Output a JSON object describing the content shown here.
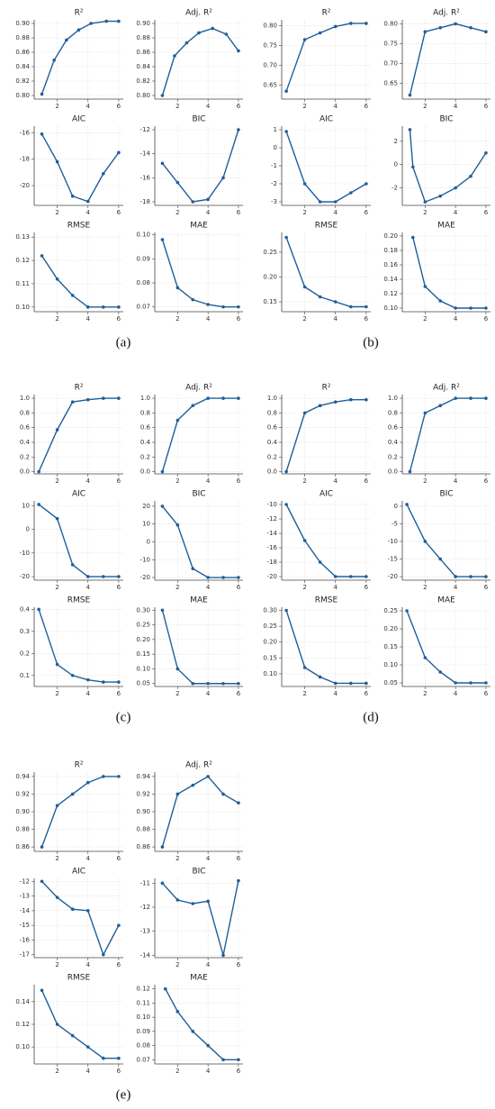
{
  "panel_labels": [
    "(a)",
    "(b)",
    "(c)",
    "(d)",
    "(e)"
  ],
  "chart_data": [
    {
      "type": "line",
      "title": "R²",
      "x": [
        1,
        1.8,
        2.6,
        3.4,
        4.2,
        5.2,
        6
      ],
      "values": [
        0.802,
        0.849,
        0.877,
        0.891,
        0.9,
        0.903,
        0.903
      ],
      "xlim": [
        0.5,
        6.3
      ],
      "ylim": [
        0.795,
        0.905
      ],
      "xticks": [
        2,
        4,
        6
      ],
      "yticks": [
        {
          "value": 0.8,
          "label": "0.80"
        },
        0.82,
        0.84,
        0.86,
        0.88,
        {
          "value": 0.9,
          "label": "0.90"
        }
      ],
      "grid": true,
      "color": "#1f5f99"
    },
    {
      "type": "line",
      "title": "Adj. R²",
      "x": [
        1,
        1.8,
        2.6,
        3.4,
        4.3,
        5.2,
        6
      ],
      "values": [
        0.8,
        0.855,
        0.873,
        0.887,
        0.893,
        0.885,
        0.862
      ],
      "xlim": [
        0.5,
        6.3
      ],
      "ylim": [
        0.795,
        0.905
      ],
      "xticks": [
        2,
        4,
        6
      ],
      "yticks": [
        {
          "value": 0.8,
          "label": "0.80"
        },
        0.82,
        0.84,
        0.86,
        0.88,
        {
          "value": 0.9,
          "label": "0.90"
        }
      ],
      "grid": true,
      "color": "#1f5f99"
    },
    {
      "type": "line",
      "title": "AIC",
      "x": [
        1,
        2,
        3,
        4,
        5,
        6
      ],
      "values": [
        -16.1,
        -18.2,
        -20.8,
        -21.2,
        -19.1,
        -17.5
      ],
      "xlim": [
        0.5,
        6.3
      ],
      "ylim": [
        -21.5,
        -15.5
      ],
      "xticks": [
        2,
        4,
        6
      ],
      "yticks": [
        -20,
        -18,
        -16
      ],
      "grid": true,
      "color": "#1f5f99"
    },
    {
      "type": "line",
      "title": "BIC",
      "x": [
        1,
        2,
        3,
        4,
        5,
        6
      ],
      "values": [
        -14.8,
        -16.4,
        -18,
        -17.8,
        -16,
        -12
      ],
      "xlim": [
        0.5,
        6.3
      ],
      "ylim": [
        -18.3,
        -11.7
      ],
      "xticks": [
        2,
        4,
        6
      ],
      "yticks": [
        -18,
        -16,
        -14,
        -12
      ],
      "grid": true,
      "color": "#1f5f99"
    },
    {
      "type": "line",
      "title": "RMSE",
      "x": [
        1,
        2,
        3,
        4,
        5,
        6
      ],
      "values": [
        0.122,
        0.112,
        0.105,
        0.1,
        0.1,
        0.1
      ],
      "xlim": [
        0.5,
        6.3
      ],
      "ylim": [
        0.098,
        0.132
      ],
      "xticks": [
        2,
        4,
        6
      ],
      "yticks": [
        {
          "value": 0.1,
          "label": "0.10"
        },
        0.11,
        0.12,
        0.13
      ],
      "grid": true,
      "color": "#1f5f99"
    },
    {
      "type": "line",
      "title": "MAE",
      "x": [
        1,
        2,
        3,
        4,
        5,
        6
      ],
      "values": [
        0.098,
        0.078,
        0.073,
        0.071,
        0.07,
        0.07
      ],
      "xlim": [
        0.5,
        6.3
      ],
      "ylim": [
        0.068,
        0.101
      ],
      "xticks": [
        2,
        4,
        6
      ],
      "yticks": [
        0.07,
        0.08,
        0.09,
        {
          "value": 0.1,
          "label": "0.10"
        }
      ],
      "grid": true,
      "color": "#1f5f99"
    },
    {
      "type": "line",
      "title": "R²",
      "x": [
        0.8,
        2,
        3,
        4,
        5,
        6
      ],
      "values": [
        0.635,
        0.765,
        0.782,
        0.798,
        0.806,
        0.806
      ],
      "xlim": [
        0.5,
        6.3
      ],
      "ylim": [
        0.615,
        0.815
      ],
      "xticks": [
        2,
        4,
        6
      ],
      "yticks": [
        0.65,
        {
          "value": 0.7,
          "label": "0.70"
        },
        0.75,
        {
          "value": 0.8,
          "label": "0.80"
        }
      ],
      "grid": true,
      "color": "#1f5f99"
    },
    {
      "type": "line",
      "title": "Adj. R²",
      "x": [
        1,
        2,
        3,
        4,
        5,
        6
      ],
      "values": [
        0.62,
        0.78,
        0.79,
        0.8,
        0.79,
        0.78
      ],
      "xlim": [
        0.5,
        6.3
      ],
      "ylim": [
        0.61,
        0.81
      ],
      "xticks": [
        2,
        4,
        6
      ],
      "yticks": [
        0.65,
        {
          "value": 0.7,
          "label": "0.70"
        },
        0.75,
        {
          "value": 0.8,
          "label": "0.80"
        }
      ],
      "grid": true,
      "color": "#1f5f99"
    },
    {
      "type": "line",
      "title": "AIC",
      "x": [
        0.8,
        2,
        3,
        4,
        5,
        6
      ],
      "values": [
        0.9,
        -2,
        -3,
        -3,
        -2.5,
        -2
      ],
      "xlim": [
        0.5,
        6.3
      ],
      "ylim": [
        -3.2,
        1.2
      ],
      "xticks": [
        2,
        4,
        6
      ],
      "yticks": [
        -3,
        -2,
        -1,
        0,
        1
      ],
      "grid": true,
      "color": "#1f5f99"
    },
    {
      "type": "line",
      "title": "BIC",
      "x": [
        1,
        1.2,
        2,
        3,
        4,
        5,
        6
      ],
      "values": [
        3,
        -0.2,
        -3.2,
        -2.7,
        -2,
        -1,
        1
      ],
      "xlim": [
        0.5,
        6.3
      ],
      "ylim": [
        -3.5,
        3.3
      ],
      "xticks": [
        2,
        4,
        6
      ],
      "yticks": [
        -2,
        0,
        2
      ],
      "grid": true,
      "color": "#1f5f99"
    },
    {
      "type": "line",
      "title": "RMSE",
      "x": [
        0.8,
        2,
        3,
        4,
        5,
        6
      ],
      "values": [
        0.28,
        0.18,
        0.16,
        0.15,
        0.14,
        0.14
      ],
      "xlim": [
        0.5,
        6.3
      ],
      "ylim": [
        0.13,
        0.29
      ],
      "xticks": [
        2,
        4,
        6
      ],
      "yticks": [
        0.15,
        {
          "value": 0.2,
          "label": "0.20"
        },
        0.25
      ],
      "grid": true,
      "color": "#1f5f99"
    },
    {
      "type": "line",
      "title": "MAE",
      "x": [
        1.2,
        2,
        3,
        4,
        5,
        6
      ],
      "values": [
        0.198,
        0.13,
        0.11,
        0.1,
        0.1,
        0.1
      ],
      "xlim": [
        0.5,
        6.3
      ],
      "ylim": [
        0.095,
        0.205
      ],
      "xticks": [
        2,
        4,
        6
      ],
      "yticks": [
        {
          "value": 0.1,
          "label": "0.10"
        },
        0.12,
        0.14,
        0.16,
        0.18,
        {
          "value": 0.2,
          "label": "0.20"
        }
      ],
      "grid": true,
      "color": "#1f5f99"
    },
    {
      "type": "line",
      "title": "R²",
      "x": [
        0.8,
        2,
        3,
        4,
        5,
        6
      ],
      "values": [
        0,
        0.57,
        0.95,
        0.98,
        1,
        1
      ],
      "xlim": [
        0.5,
        6.3
      ],
      "ylim": [
        -0.03,
        1.05
      ],
      "xticks": [
        2,
        4,
        6
      ],
      "yticks": [
        {
          "value": 0,
          "label": "0.0"
        },
        0.2,
        0.4,
        0.6,
        0.8,
        {
          "value": 1,
          "label": "1.0"
        }
      ],
      "grid": true,
      "color": "#1f5f99"
    },
    {
      "type": "line",
      "title": "Adj. R²",
      "x": [
        1,
        2,
        3,
        4,
        5,
        6
      ],
      "values": [
        0,
        0.7,
        0.9,
        1,
        1,
        1
      ],
      "xlim": [
        0.5,
        6.3
      ],
      "ylim": [
        -0.03,
        1.05
      ],
      "xticks": [
        2,
        4,
        6
      ],
      "yticks": [
        {
          "value": 0,
          "label": "0.0"
        },
        0.2,
        0.4,
        0.6,
        0.8,
        {
          "value": 1,
          "label": "1.0"
        }
      ],
      "grid": true,
      "color": "#1f5f99"
    },
    {
      "type": "line",
      "title": "AIC",
      "x": [
        0.8,
        2,
        3,
        4,
        5,
        6
      ],
      "values": [
        10.5,
        4.5,
        -15,
        -20,
        -20,
        -20
      ],
      "xlim": [
        0.5,
        6.3
      ],
      "ylim": [
        -21.5,
        12
      ],
      "xticks": [
        2,
        4,
        6
      ],
      "yticks": [
        -20,
        -10,
        0,
        10
      ],
      "grid": true,
      "color": "#1f5f99"
    },
    {
      "type": "line",
      "title": "BIC",
      "x": [
        1,
        2,
        3,
        4,
        5,
        6
      ],
      "values": [
        20,
        9.5,
        -15,
        -20,
        -20,
        -20
      ],
      "xlim": [
        0.5,
        6.3
      ],
      "ylim": [
        -21.5,
        23
      ],
      "xticks": [
        2,
        4,
        6
      ],
      "yticks": [
        -20,
        -10,
        0,
        10,
        20
      ],
      "grid": true,
      "color": "#1f5f99"
    },
    {
      "type": "line",
      "title": "RMSE",
      "x": [
        0.8,
        2,
        3,
        4,
        5,
        6
      ],
      "values": [
        0.4,
        0.15,
        0.1,
        0.08,
        0.07,
        0.07
      ],
      "xlim": [
        0.5,
        6.3
      ],
      "ylim": [
        0.05,
        0.41
      ],
      "xticks": [
        2,
        4,
        6
      ],
      "yticks": [
        0.1,
        0.2,
        0.3,
        0.4
      ],
      "grid": true,
      "color": "#1f5f99"
    },
    {
      "type": "line",
      "title": "MAE",
      "x": [
        1,
        2,
        3,
        4,
        5,
        6
      ],
      "values": [
        0.3,
        0.1,
        0.05,
        0.05,
        0.05,
        0.05
      ],
      "xlim": [
        0.5,
        6.3
      ],
      "ylim": [
        0.04,
        0.31
      ],
      "xticks": [
        2,
        4,
        6
      ],
      "yticks": [
        0.05,
        {
          "value": 0.1,
          "label": "0.10"
        },
        0.15,
        {
          "value": 0.2,
          "label": "0.20"
        },
        0.25,
        {
          "value": 0.3,
          "label": "0.30"
        }
      ],
      "grid": true,
      "color": "#1f5f99"
    },
    {
      "type": "line",
      "title": "R²",
      "x": [
        0.8,
        2,
        3,
        4,
        5,
        6
      ],
      "values": [
        0,
        0.8,
        0.9,
        0.95,
        0.98,
        0.98
      ],
      "xlim": [
        0.5,
        6.3
      ],
      "ylim": [
        -0.03,
        1.05
      ],
      "xticks": [
        2,
        4,
        6
      ],
      "yticks": [
        {
          "value": 0,
          "label": "0.0"
        },
        0.2,
        0.4,
        0.6,
        0.8,
        {
          "value": 1,
          "label": "1.0"
        }
      ],
      "grid": true,
      "color": "#1f5f99"
    },
    {
      "type": "line",
      "title": "Adj. R²",
      "x": [
        1,
        2,
        3,
        4,
        5,
        6
      ],
      "values": [
        0,
        0.8,
        0.9,
        1,
        1,
        1
      ],
      "xlim": [
        0.5,
        6.3
      ],
      "ylim": [
        -0.03,
        1.05
      ],
      "xticks": [
        2,
        4,
        6
      ],
      "yticks": [
        {
          "value": 0,
          "label": "0.0"
        },
        0.2,
        0.4,
        0.6,
        0.8,
        {
          "value": 1,
          "label": "1.0"
        }
      ],
      "grid": true,
      "color": "#1f5f99"
    },
    {
      "type": "line",
      "title": "AIC",
      "x": [
        0.8,
        2,
        3,
        4,
        5,
        6
      ],
      "values": [
        -10,
        -15,
        -18,
        -20,
        -20,
        -20
      ],
      "xlim": [
        0.5,
        6.3
      ],
      "ylim": [
        -20.5,
        -9.5
      ],
      "xticks": [
        2,
        4,
        6
      ],
      "yticks": [
        -20,
        -18,
        -16,
        -14,
        -12,
        -10
      ],
      "grid": true,
      "color": "#1f5f99"
    },
    {
      "type": "line",
      "title": "BIC",
      "x": [
        0.8,
        2,
        3,
        4,
        5,
        6
      ],
      "values": [
        0.5,
        -10,
        -15,
        -20,
        -20,
        -20
      ],
      "xlim": [
        0.5,
        6.3
      ],
      "ylim": [
        -21,
        1.5
      ],
      "xticks": [
        2,
        4,
        6
      ],
      "yticks": [
        -20,
        -15,
        -10,
        -5,
        0
      ],
      "grid": true,
      "color": "#1f5f99"
    },
    {
      "type": "line",
      "title": "RMSE",
      "x": [
        0.8,
        2,
        3,
        4,
        5,
        6
      ],
      "values": [
        0.3,
        0.12,
        0.09,
        0.07,
        0.07,
        0.07
      ],
      "xlim": [
        0.5,
        6.3
      ],
      "ylim": [
        0.06,
        0.31
      ],
      "xticks": [
        2,
        4,
        6
      ],
      "yticks": [
        {
          "value": 0.1,
          "label": "0.10"
        },
        0.15,
        {
          "value": 0.2,
          "label": "0.20"
        },
        0.25,
        {
          "value": 0.3,
          "label": "0.30"
        }
      ],
      "grid": true,
      "color": "#1f5f99"
    },
    {
      "type": "line",
      "title": "MAE",
      "x": [
        0.8,
        2,
        3,
        4,
        5,
        6
      ],
      "values": [
        0.25,
        0.12,
        0.08,
        0.05,
        0.05,
        0.05
      ],
      "xlim": [
        0.5,
        6.3
      ],
      "ylim": [
        0.04,
        0.26
      ],
      "xticks": [
        2,
        4,
        6
      ],
      "yticks": [
        0.05,
        {
          "value": 0.1,
          "label": "0.10"
        },
        0.15,
        {
          "value": 0.2,
          "label": "0.20"
        },
        0.25
      ],
      "grid": true,
      "color": "#1f5f99"
    },
    {
      "type": "line",
      "title": "R²",
      "x": [
        1,
        2,
        3,
        4,
        5,
        6
      ],
      "values": [
        0.86,
        0.907,
        0.92,
        0.933,
        0.94,
        0.94
      ],
      "xlim": [
        0.5,
        6.3
      ],
      "ylim": [
        0.855,
        0.945
      ],
      "xticks": [
        2,
        4,
        6
      ],
      "yticks": [
        0.86,
        0.88,
        {
          "value": 0.9,
          "label": "0.90"
        },
        0.92,
        0.94
      ],
      "grid": true,
      "color": "#1f5f99"
    },
    {
      "type": "line",
      "title": "Adj. R²",
      "x": [
        1,
        2,
        3,
        4,
        5,
        6
      ],
      "values": [
        0.86,
        0.92,
        0.93,
        0.94,
        0.92,
        0.91
      ],
      "xlim": [
        0.5,
        6.3
      ],
      "ylim": [
        0.855,
        0.945
      ],
      "xticks": [
        2,
        4,
        6
      ],
      "yticks": [
        0.86,
        0.88,
        {
          "value": 0.9,
          "label": "0.90"
        },
        0.92,
        0.94
      ],
      "grid": true,
      "color": "#1f5f99"
    },
    {
      "type": "line",
      "title": "AIC",
      "x": [
        1,
        2,
        3,
        4,
        5,
        6
      ],
      "values": [
        -12,
        -13.1,
        -13.9,
        -14,
        -17,
        -15
      ],
      "xlim": [
        0.5,
        6.3
      ],
      "ylim": [
        -17.2,
        -11.8
      ],
      "xticks": [
        2,
        4,
        6
      ],
      "yticks": [
        -17,
        -16,
        -15,
        -14,
        -13,
        -12
      ],
      "grid": true,
      "color": "#1f5f99"
    },
    {
      "type": "line",
      "title": "BIC",
      "x": [
        1,
        2,
        3,
        4,
        5,
        6
      ],
      "values": [
        -11,
        -11.7,
        -11.85,
        -11.75,
        -14,
        -10.9
      ],
      "xlim": [
        0.5,
        6.3
      ],
      "ylim": [
        -14.1,
        -10.8
      ],
      "xticks": [
        2,
        4,
        6
      ],
      "yticks": [
        -14,
        -13,
        -12,
        -11
      ],
      "grid": true,
      "color": "#1f5f99"
    },
    {
      "type": "line",
      "title": "RMSE",
      "x": [
        1,
        2,
        3,
        4,
        5,
        6
      ],
      "values": [
        0.15,
        0.12,
        0.11,
        0.1,
        0.09,
        0.09
      ],
      "xlim": [
        0.5,
        6.3
      ],
      "ylim": [
        0.085,
        0.155
      ],
      "xticks": [
        2,
        4,
        6
      ],
      "yticks": [
        {
          "value": 0.1,
          "label": "0.10"
        },
        0.12,
        0.14
      ],
      "grid": true,
      "color": "#1f5f99"
    },
    {
      "type": "line",
      "title": "MAE",
      "x": [
        1.2,
        2,
        3,
        4,
        5,
        6
      ],
      "values": [
        0.12,
        0.104,
        0.09,
        0.08,
        0.07,
        0.07
      ],
      "xlim": [
        0.5,
        6.3
      ],
      "ylim": [
        0.067,
        0.123
      ],
      "xticks": [
        2,
        4,
        6
      ],
      "yticks": [
        0.07,
        0.08,
        0.09,
        {
          "value": 0.1,
          "label": "0.10"
        },
        0.11,
        0.12
      ],
      "grid": true,
      "color": "#1f5f99"
    }
  ]
}
